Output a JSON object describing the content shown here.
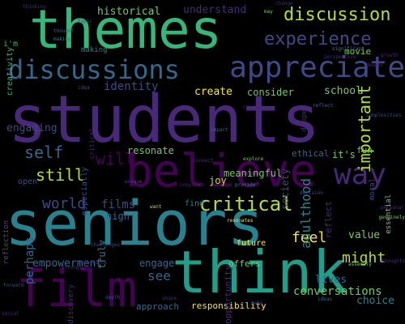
{
  "colors": {
    "background": "#000000",
    "palette": [
      "#440154",
      "#482878",
      "#3e4989",
      "#31688e",
      "#26828e",
      "#1f9e89",
      "#35b779",
      "#6ece58",
      "#b5de2b",
      "#fde725"
    ]
  },
  "words": [
    {
      "text": "students",
      "color": "#482878"
    },
    {
      "text": "seniors",
      "color": "#26828e"
    },
    {
      "text": "think",
      "color": "#1f9e89"
    },
    {
      "text": "believe",
      "color": "#440154"
    },
    {
      "text": "themes",
      "color": "#35b779"
    },
    {
      "text": "film",
      "color": "#440154"
    },
    {
      "text": "appreciate",
      "color": "#3e4989"
    },
    {
      "text": "discussions",
      "color": "#31688e"
    },
    {
      "text": "way",
      "color": "#482878"
    },
    {
      "text": "experience",
      "color": "#3e4989"
    },
    {
      "text": "discussion",
      "color": "#b5de2b"
    },
    {
      "text": "critical",
      "color": "#b5de2b"
    },
    {
      "text": "important",
      "color": "#b5de2b"
    },
    {
      "text": "still",
      "color": "#b5de2b"
    },
    {
      "text": "self",
      "color": "#31688e"
    },
    {
      "text": "will",
      "color": "#440154"
    },
    {
      "text": "lives",
      "color": "#31688e"
    },
    {
      "text": "world",
      "color": "#3e4989"
    },
    {
      "text": "feel",
      "color": "#fde725"
    },
    {
      "text": "might",
      "color": "#b5de2b"
    },
    {
      "text": "empowerment",
      "color": "#31688e"
    },
    {
      "text": "see",
      "color": "#31688e"
    },
    {
      "text": "conversations",
      "color": "#6ece58"
    },
    {
      "text": "films",
      "color": "#3e4989"
    },
    {
      "text": "engaging",
      "color": "#3e4989"
    },
    {
      "text": "historical",
      "color": "#6ece58"
    },
    {
      "text": "understand",
      "color": "#482878"
    },
    {
      "text": "identity",
      "color": "#3e4989"
    },
    {
      "text": "create",
      "color": "#fde725"
    },
    {
      "text": "school",
      "color": "#6ece58"
    },
    {
      "text": "consider",
      "color": "#6ece58"
    },
    {
      "text": "high",
      "color": "#31688e"
    },
    {
      "text": "meaningful",
      "color": "#6ece58"
    },
    {
      "text": "it's",
      "color": "#6ece58"
    },
    {
      "text": "resonate",
      "color": "#6ece58"
    },
    {
      "text": "joy",
      "color": "#b5de2b"
    },
    {
      "text": "choice",
      "color": "#26828e"
    },
    {
      "text": "engage",
      "color": "#31688e"
    },
    {
      "text": "value",
      "color": "#6ece58"
    },
    {
      "text": "responsibility",
      "color": "#fde725"
    },
    {
      "text": "approach",
      "color": "#31688e"
    },
    {
      "text": "fun",
      "color": "#6ece58"
    },
    {
      "text": "movie",
      "color": "#6ece58"
    },
    {
      "text": "offers",
      "color": "#6ece58"
    },
    {
      "text": "future",
      "color": "#fde725"
    },
    {
      "text": "find",
      "color": "#26828e"
    },
    {
      "text": "i'm",
      "color": "#35b779"
    },
    {
      "text": "open",
      "color": "#3e4989"
    },
    {
      "text": "making",
      "color": "#26828e"
    },
    {
      "text": "ethical",
      "color": "#31688e"
    }
  ],
  "vertical_words": [
    {
      "text": "adulthood",
      "color": "#26828e"
    },
    {
      "text": "perhaps",
      "color": "#31688e"
    },
    {
      "text": "truly",
      "color": "#26828e"
    },
    {
      "text": "important",
      "color": "#b5de2b"
    },
    {
      "text": "creativity",
      "color": "#35b779"
    },
    {
      "text": "especially",
      "color": "#3e4989"
    },
    {
      "text": "reflect",
      "color": "#482878"
    },
    {
      "text": "moral",
      "color": "#3e4989"
    },
    {
      "text": "opportunity",
      "color": "#482878"
    },
    {
      "text": "discovery",
      "color": "#482878"
    },
    {
      "text": "reflection",
      "color": "#3e4989"
    },
    {
      "text": "essential",
      "color": "#6ece58"
    },
    {
      "text": "deeper",
      "color": "#482878"
    },
    {
      "text": "critical",
      "color": "#482878"
    },
    {
      "text": "society",
      "color": "#3e4989"
    }
  ],
  "tiny_words": [
    {
      "text": "thinking",
      "color": "#482878"
    },
    {
      "text": "thought",
      "color": "#31688e"
    },
    {
      "text": "making",
      "color": "#26828e"
    },
    {
      "text": "idea",
      "color": "#3e4989"
    },
    {
      "text": "may",
      "color": "#6ece58"
    },
    {
      "text": "significant",
      "color": "#26828e"
    },
    {
      "text": "perspective",
      "color": "#482878"
    },
    {
      "text": "deeper",
      "color": "#482878"
    },
    {
      "text": "topic",
      "color": "#3e4989"
    },
    {
      "text": "growth",
      "color": "#482878"
    },
    {
      "text": "personal",
      "color": "#482878"
    },
    {
      "text": "reflect",
      "color": "#31688e"
    },
    {
      "text": "complexities",
      "color": "#3e4989"
    },
    {
      "text": "change",
      "color": "#482878"
    },
    {
      "text": "crucial",
      "color": "#482878"
    },
    {
      "text": "impact",
      "color": "#31688e"
    },
    {
      "text": "want",
      "color": "#b5de2b"
    },
    {
      "text": "make",
      "color": "#3e4989"
    },
    {
      "text": "resonates",
      "color": "#fde725"
    },
    {
      "text": "provide",
      "color": "#26828e"
    },
    {
      "text": "unique",
      "color": "#3e4989"
    },
    {
      "text": "connect",
      "color": "#482878"
    },
    {
      "text": "inspire",
      "color": "#482878"
    },
    {
      "text": "explore",
      "color": "#6ece58"
    },
    {
      "text": "assembly",
      "color": "#6ece58"
    },
    {
      "text": "genuinely",
      "color": "#6ece58"
    },
    {
      "text": "forward",
      "color": "#3e4989"
    },
    {
      "text": "depth",
      "color": "#3e4989"
    },
    {
      "text": "importance",
      "color": "#482878"
    },
    {
      "text": "decision",
      "color": "#3e4989"
    },
    {
      "text": "thoughts",
      "color": "#482878"
    },
    {
      "text": "challenges",
      "color": "#3e4989"
    },
    {
      "text": "social",
      "color": "#482878"
    },
    {
      "text": "strongly",
      "color": "#482878"
    },
    {
      "text": "shape",
      "color": "#482878"
    },
    {
      "text": "ideas",
      "color": "#31688e"
    }
  ]
}
